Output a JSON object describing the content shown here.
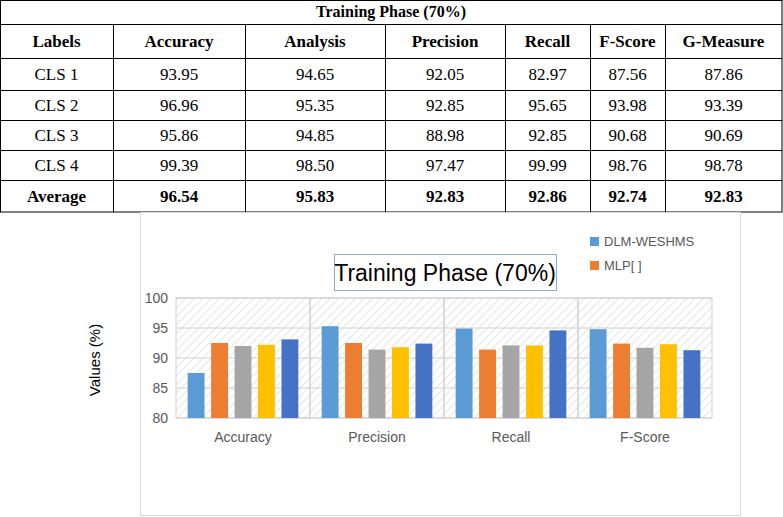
{
  "table": {
    "title": "Training Phase (70%)",
    "header": [
      "Labels",
      "Accuracy",
      "Analysis",
      "Precision",
      "Recall",
      "F-Score",
      "G-Measure"
    ],
    "rows": [
      [
        "CLS 1",
        "93.95",
        "94.65",
        "92.05",
        "82.97",
        "87.56",
        "87.86"
      ],
      [
        "CLS 2",
        "96.96",
        "95.35",
        "92.85",
        "95.65",
        "93.98",
        "93.39"
      ],
      [
        "CLS 3",
        "95.86",
        "94.85",
        "88.98",
        "92.85",
        "90.68",
        "90.69"
      ],
      [
        "CLS 4",
        "99.39",
        "98.50",
        "97.47",
        "99.99",
        "98.76",
        "98.78"
      ],
      [
        "Average",
        "96.54",
        "95.83",
        "92.83",
        "92.86",
        "92.74",
        "92.83"
      ]
    ]
  },
  "chart_data": {
    "type": "bar",
    "title": "Training Phase (70%)",
    "y_label": "Values (%)",
    "categories": [
      "Accuracy",
      "Precision",
      "Recall",
      "F-Score"
    ],
    "series": [
      {
        "name": "DLM-WESHMS",
        "color": "#5b9bd5",
        "values": [
          87.5,
          95.3,
          94.9,
          94.8
        ]
      },
      {
        "name": "MLP[ ]",
        "color": "#ed7d31",
        "values": [
          92.5,
          92.5,
          91.4,
          92.4
        ]
      },
      {
        "name": null,
        "color": "#a5a5a5",
        "values": [
          92.0,
          91.4,
          92.1,
          91.7
        ]
      },
      {
        "name": null,
        "color": "#ffc000",
        "values": [
          92.2,
          91.8,
          92.1,
          92.3
        ]
      },
      {
        "name": null,
        "color": "#4472c4",
        "values": [
          93.1,
          92.4,
          94.6,
          91.3
        ]
      }
    ],
    "ylim": [
      80,
      100
    ],
    "yticks": [
      80,
      85,
      90,
      95,
      100
    ],
    "grid": true,
    "legend": "top-right"
  }
}
